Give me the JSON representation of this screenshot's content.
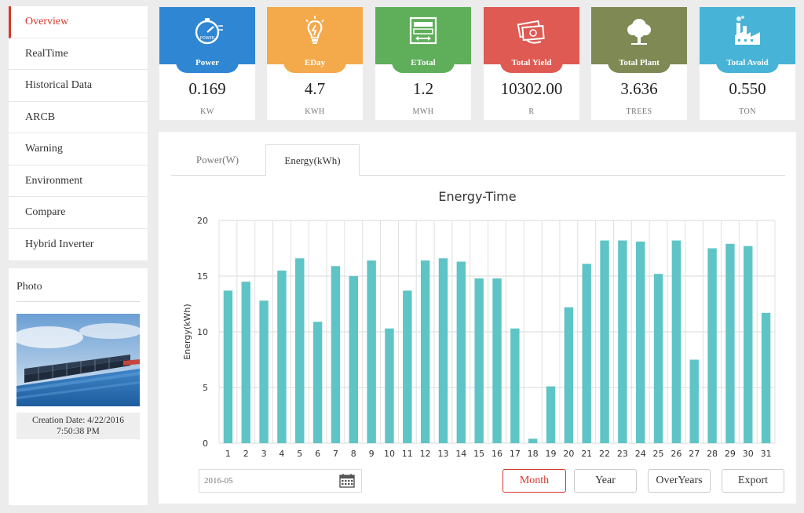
{
  "sidebar": {
    "items": [
      {
        "label": "Overview",
        "active": true
      },
      {
        "label": "RealTime"
      },
      {
        "label": "Historical Data"
      },
      {
        "label": "ARCB"
      },
      {
        "label": "Warning"
      },
      {
        "label": "Environment"
      },
      {
        "label": "Compare"
      },
      {
        "label": "Hybrid Inverter"
      }
    ]
  },
  "photo": {
    "title": "Photo",
    "caption_line1": "Creation Date: 4/22/2016",
    "caption_line2": "7:50:38 PM"
  },
  "cards": [
    {
      "label": "Power",
      "value": "0.169",
      "unit": "KW",
      "color": "#2f86d2",
      "icon": "speedometer-icon"
    },
    {
      "label": "EDay",
      "value": "4.7",
      "unit": "KWH",
      "color": "#f4a94a",
      "icon": "lightbulb-icon"
    },
    {
      "label": "ETotal",
      "value": "1.2",
      "unit": "MWH",
      "color": "#5fae5a",
      "icon": "meter-icon"
    },
    {
      "label": "Total Yield",
      "value": "10302.00",
      "unit": "R",
      "color": "#de5a52",
      "icon": "money-icon"
    },
    {
      "label": "Total Plant",
      "value": "3.636",
      "unit": "TREES",
      "color": "#7e8954",
      "icon": "tree-icon"
    },
    {
      "label": "Total Avoid",
      "value": "0.550",
      "unit": "TON",
      "color": "#47b3d6",
      "icon": "factory-icon"
    }
  ],
  "tabs": [
    {
      "label": "Power(W)"
    },
    {
      "label": "Energy(kWh)",
      "active": true
    }
  ],
  "chart_data": {
    "type": "bar",
    "title": "Energy-Time",
    "xlabel": "",
    "ylabel": "Energy(kWh)",
    "ylim": [
      0,
      20
    ],
    "yticks": [
      0,
      5,
      10,
      15,
      20
    ],
    "grid": true,
    "bar_color": "#5fc4c6",
    "categories": [
      "1",
      "2",
      "3",
      "4",
      "5",
      "6",
      "7",
      "8",
      "9",
      "10",
      "11",
      "12",
      "13",
      "14",
      "15",
      "16",
      "17",
      "18",
      "19",
      "20",
      "21",
      "22",
      "23",
      "24",
      "25",
      "26",
      "27",
      "28",
      "29",
      "30",
      "31"
    ],
    "values": [
      13.7,
      14.5,
      12.8,
      15.5,
      16.6,
      10.9,
      15.9,
      15.0,
      16.4,
      10.3,
      13.7,
      16.4,
      16.6,
      16.3,
      14.8,
      14.8,
      10.3,
      0.4,
      5.1,
      12.2,
      16.1,
      18.2,
      18.2,
      18.1,
      15.2,
      18.2,
      7.5,
      17.5,
      17.9,
      17.7,
      11.7
    ]
  },
  "controls": {
    "date_value": "2016-05",
    "month_label": "Month",
    "year_label": "Year",
    "overyears_label": "OverYears",
    "export_label": "Export"
  }
}
